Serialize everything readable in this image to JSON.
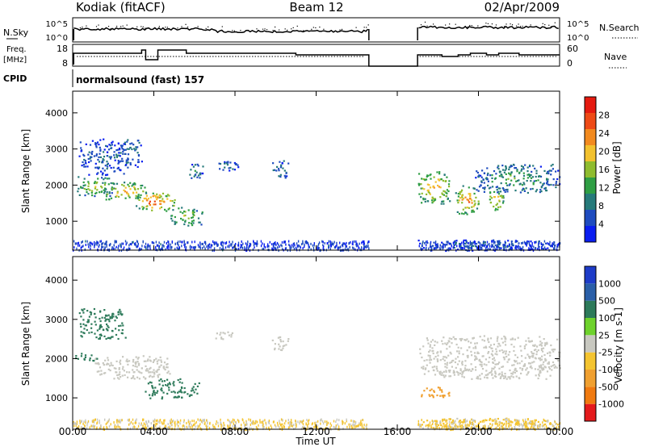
{
  "header": {
    "station": "Kodiak (fitACF)",
    "beam": "Beam 12",
    "date": "02/Apr/2009"
  },
  "panels": {
    "nsky_label": "N.Sky",
    "nsky_ticks": [
      "10^5",
      "10^0"
    ],
    "nsearch_label": "N.Search",
    "nsearch_ticks": [
      "10^5",
      "10^0"
    ],
    "freq_label": "Freq.",
    "freq_unit": "[MHz]",
    "freq_ticks": [
      "18",
      "8"
    ],
    "nave_label": "Nave",
    "nave_ticks": [
      "60",
      "0"
    ],
    "cpid_label": "CPID",
    "cpid_value": "normalsound (fast) 157"
  },
  "colors": {
    "power_scale": [
      "#0a1ef0",
      "#1f4cbf",
      "#267a7a",
      "#2f9e44",
      "#8fbc2f",
      "#f2c12e",
      "#f28a1f",
      "#ee4a16",
      "#e51a10"
    ],
    "velocity_scale": [
      "#e41a1c",
      "#f07a10",
      "#f0a030",
      "#f4c430",
      "#c8c8c0",
      "#6ed22c",
      "#2d7a5a",
      "#2a5fa8",
      "#1e3cc8"
    ]
  },
  "chart_data": [
    {
      "type": "heatmap",
      "name": "power",
      "xlabel": "Time UT",
      "ylabel": "Slant Range [km]",
      "x_ticks": [
        "00:00",
        "04:00",
        "08:00",
        "12:00",
        "16:00",
        "20:00",
        "00:00"
      ],
      "xlim": [
        0,
        24
      ],
      "ylim": [
        200,
        4600
      ],
      "y_ticks": [
        "1000",
        "2000",
        "3000",
        "4000"
      ],
      "colorbar_label": "Power [dB]",
      "colorbar_ticks": [
        "4",
        "8",
        "12",
        "16",
        "20",
        "24",
        "28"
      ],
      "colorbar_range": [
        0,
        30
      ],
      "data_gap": [
        14.6,
        17.0
      ],
      "echo_regions": [
        {
          "t0": 0.1,
          "t1": 2.0,
          "r0": 1700,
          "r1": 2250,
          "level": 14
        },
        {
          "t0": 1.5,
          "t1": 3.6,
          "r0": 1600,
          "r1": 2100,
          "level": 18
        },
        {
          "t0": 3.0,
          "t1": 5.0,
          "r0": 1300,
          "r1": 1800,
          "level": 22
        },
        {
          "t0": 4.8,
          "t1": 6.4,
          "r0": 900,
          "r1": 1400,
          "level": 14
        },
        {
          "t0": 0.3,
          "t1": 2.6,
          "r0": 2300,
          "r1": 3300,
          "level": 6
        },
        {
          "t0": 2.4,
          "t1": 3.4,
          "r0": 2500,
          "r1": 3300,
          "level": 8
        },
        {
          "t0": 5.6,
          "t1": 6.4,
          "r0": 2200,
          "r1": 2600,
          "level": 8
        },
        {
          "t0": 7.0,
          "t1": 8.2,
          "r0": 2400,
          "r1": 2700,
          "level": 6
        },
        {
          "t0": 9.8,
          "t1": 10.6,
          "r0": 2200,
          "r1": 2700,
          "level": 7
        },
        {
          "t0": 17.0,
          "t1": 18.6,
          "r0": 1500,
          "r1": 2400,
          "level": 18
        },
        {
          "t0": 18.8,
          "t1": 20.0,
          "r0": 1200,
          "r1": 2000,
          "level": 20
        },
        {
          "t0": 20.4,
          "t1": 21.2,
          "r0": 1300,
          "r1": 1900,
          "level": 18
        },
        {
          "t0": 19.8,
          "t1": 24.0,
          "r0": 1800,
          "r1": 2600,
          "level": 10
        },
        {
          "t0": 17.0,
          "t1": 24.0,
          "r0": 200,
          "r1": 500,
          "level": 6
        }
      ]
    },
    {
      "type": "heatmap",
      "name": "velocity",
      "xlabel": "Time UT",
      "ylabel": "Slant Range [km]",
      "x_ticks": [
        "00:00",
        "04:00",
        "08:00",
        "12:00",
        "16:00",
        "20:00",
        "00:00"
      ],
      "xlim": [
        0,
        24
      ],
      "ylim": [
        200,
        4600
      ],
      "y_ticks": [
        "1000",
        "2000",
        "3000",
        "4000"
      ],
      "colorbar_label": "Velocity [m s-1]",
      "colorbar_ticks": [
        "-1000",
        "-500",
        "-100",
        "-25",
        "25",
        "100",
        "500",
        "1000"
      ],
      "data_gap": [
        14.6,
        17.0
      ],
      "echo_regions": [
        {
          "t0": 0.1,
          "t1": 1.2,
          "r0": 1950,
          "r1": 2150,
          "velocity": 150
        },
        {
          "t0": 1.0,
          "t1": 4.8,
          "r0": 1500,
          "r1": 2100,
          "velocity": 0
        },
        {
          "t0": 3.5,
          "t1": 6.2,
          "r0": 1000,
          "r1": 1500,
          "velocity": 120
        },
        {
          "t0": 0.3,
          "t1": 2.6,
          "r0": 2500,
          "r1": 3300,
          "velocity": 300
        },
        {
          "t0": 7.0,
          "t1": 8.0,
          "r0": 2500,
          "r1": 2700,
          "velocity": 0
        },
        {
          "t0": 9.8,
          "t1": 10.6,
          "r0": 2200,
          "r1": 2600,
          "velocity": 0
        },
        {
          "t0": 17.0,
          "t1": 24.0,
          "r0": 1500,
          "r1": 2600,
          "velocity": 0
        },
        {
          "t0": 17.1,
          "t1": 18.6,
          "r0": 1000,
          "r1": 1300,
          "velocity": -150
        },
        {
          "t0": 17.0,
          "t1": 24.0,
          "r0": 200,
          "r1": 500,
          "velocity": -40
        }
      ]
    }
  ]
}
